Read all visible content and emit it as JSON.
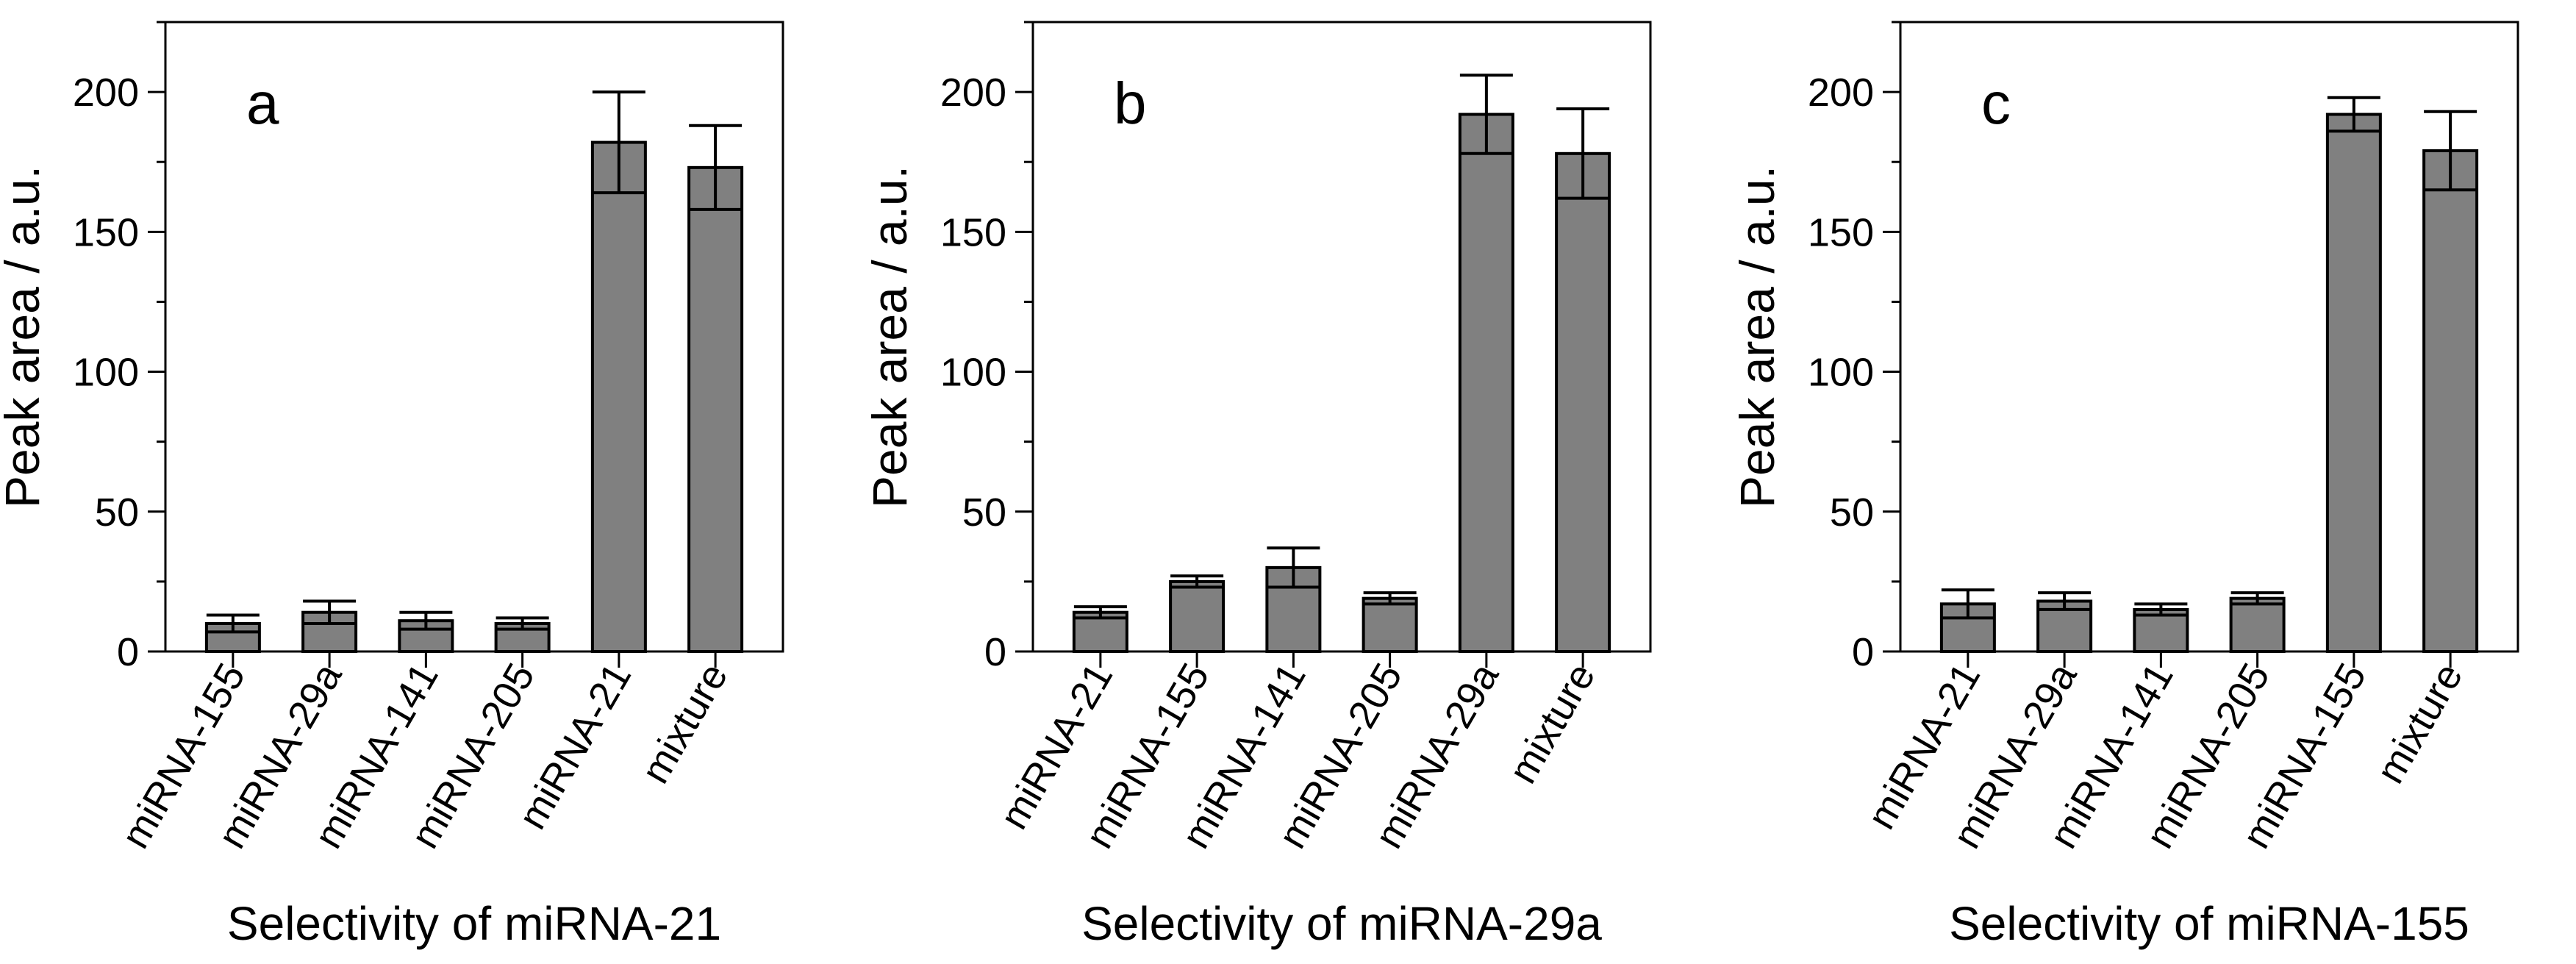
{
  "chart_data": [
    {
      "type": "bar",
      "panel_label": "a",
      "categories": [
        "miRNA-155",
        "miRNA-29a",
        "miRNA-141",
        "miRNA-205",
        "miRNA-21",
        "mixture"
      ],
      "values": [
        10,
        14,
        11,
        10,
        182,
        173
      ],
      "errors": [
        3,
        4,
        3,
        2,
        18,
        15
      ],
      "xlabel": "Selectivity of miRNA-21",
      "ylabel": "Peak area / a.u.",
      "ylim": [
        0,
        225
      ],
      "yticks": [
        0,
        50,
        100,
        150,
        200
      ],
      "bar_color": "#808080"
    },
    {
      "type": "bar",
      "panel_label": "b",
      "categories": [
        "miRNA-21",
        "miRNA-155",
        "miRNA-141",
        "miRNA-205",
        "miRNA-29a",
        "mixture"
      ],
      "values": [
        14,
        25,
        30,
        19,
        192,
        178
      ],
      "errors": [
        2,
        2,
        7,
        2,
        14,
        16
      ],
      "xlabel": "Selectivity of miRNA-29a",
      "ylabel": "Peak area / a.u.",
      "ylim": [
        0,
        225
      ],
      "yticks": [
        0,
        50,
        100,
        150,
        200
      ],
      "bar_color": "#808080"
    },
    {
      "type": "bar",
      "panel_label": "c",
      "categories": [
        "miRNA-21",
        "miRNA-29a",
        "miRNA-141",
        "miRNA-205",
        "miRNA-155",
        "mixture"
      ],
      "values": [
        17,
        18,
        15,
        19,
        192,
        179
      ],
      "errors": [
        5,
        3,
        2,
        2,
        6,
        14
      ],
      "xlabel": "Selectivity of miRNA-155",
      "ylabel": "Peak area / a.u.",
      "ylim": [
        0,
        225
      ],
      "yticks": [
        0,
        50,
        100,
        150,
        200
      ],
      "bar_color": "#808080"
    }
  ]
}
